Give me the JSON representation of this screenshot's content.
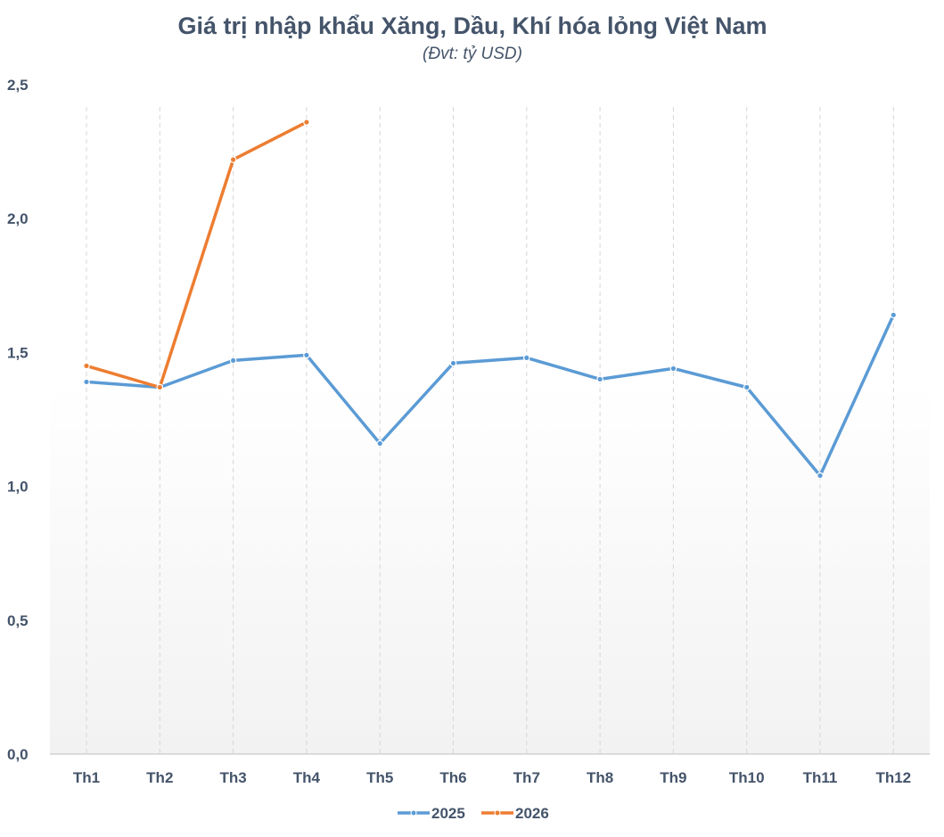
{
  "chart_data": {
    "type": "line",
    "title": "Giá trị nhập khẩu Xăng, Dầu, Khí hóa lỏng Việt Nam",
    "subtitle": "(Đvt: tỷ USD)",
    "categories": [
      "Th1",
      "Th2",
      "Th3",
      "Th4",
      "Th5",
      "Th6",
      "Th7",
      "Th8",
      "Th9",
      "Th10",
      "Th11",
      "Th12"
    ],
    "y_ticks": [
      "0,0",
      "0,5",
      "1,0",
      "1,5",
      "2,0",
      "2,5"
    ],
    "ylim": [
      0,
      2.5
    ],
    "grid": "vertical dashed",
    "legend_position": "bottom",
    "series": [
      {
        "name": "2025",
        "color": "#5b9bd5",
        "values": [
          1.39,
          1.37,
          1.47,
          1.49,
          1.16,
          1.46,
          1.48,
          1.4,
          1.44,
          1.37,
          1.04,
          1.64
        ]
      },
      {
        "name": "2026",
        "color": "#ed7d31",
        "values": [
          1.45,
          1.37,
          2.22,
          2.36,
          null,
          null,
          null,
          null,
          null,
          null,
          null,
          null
        ]
      }
    ]
  }
}
